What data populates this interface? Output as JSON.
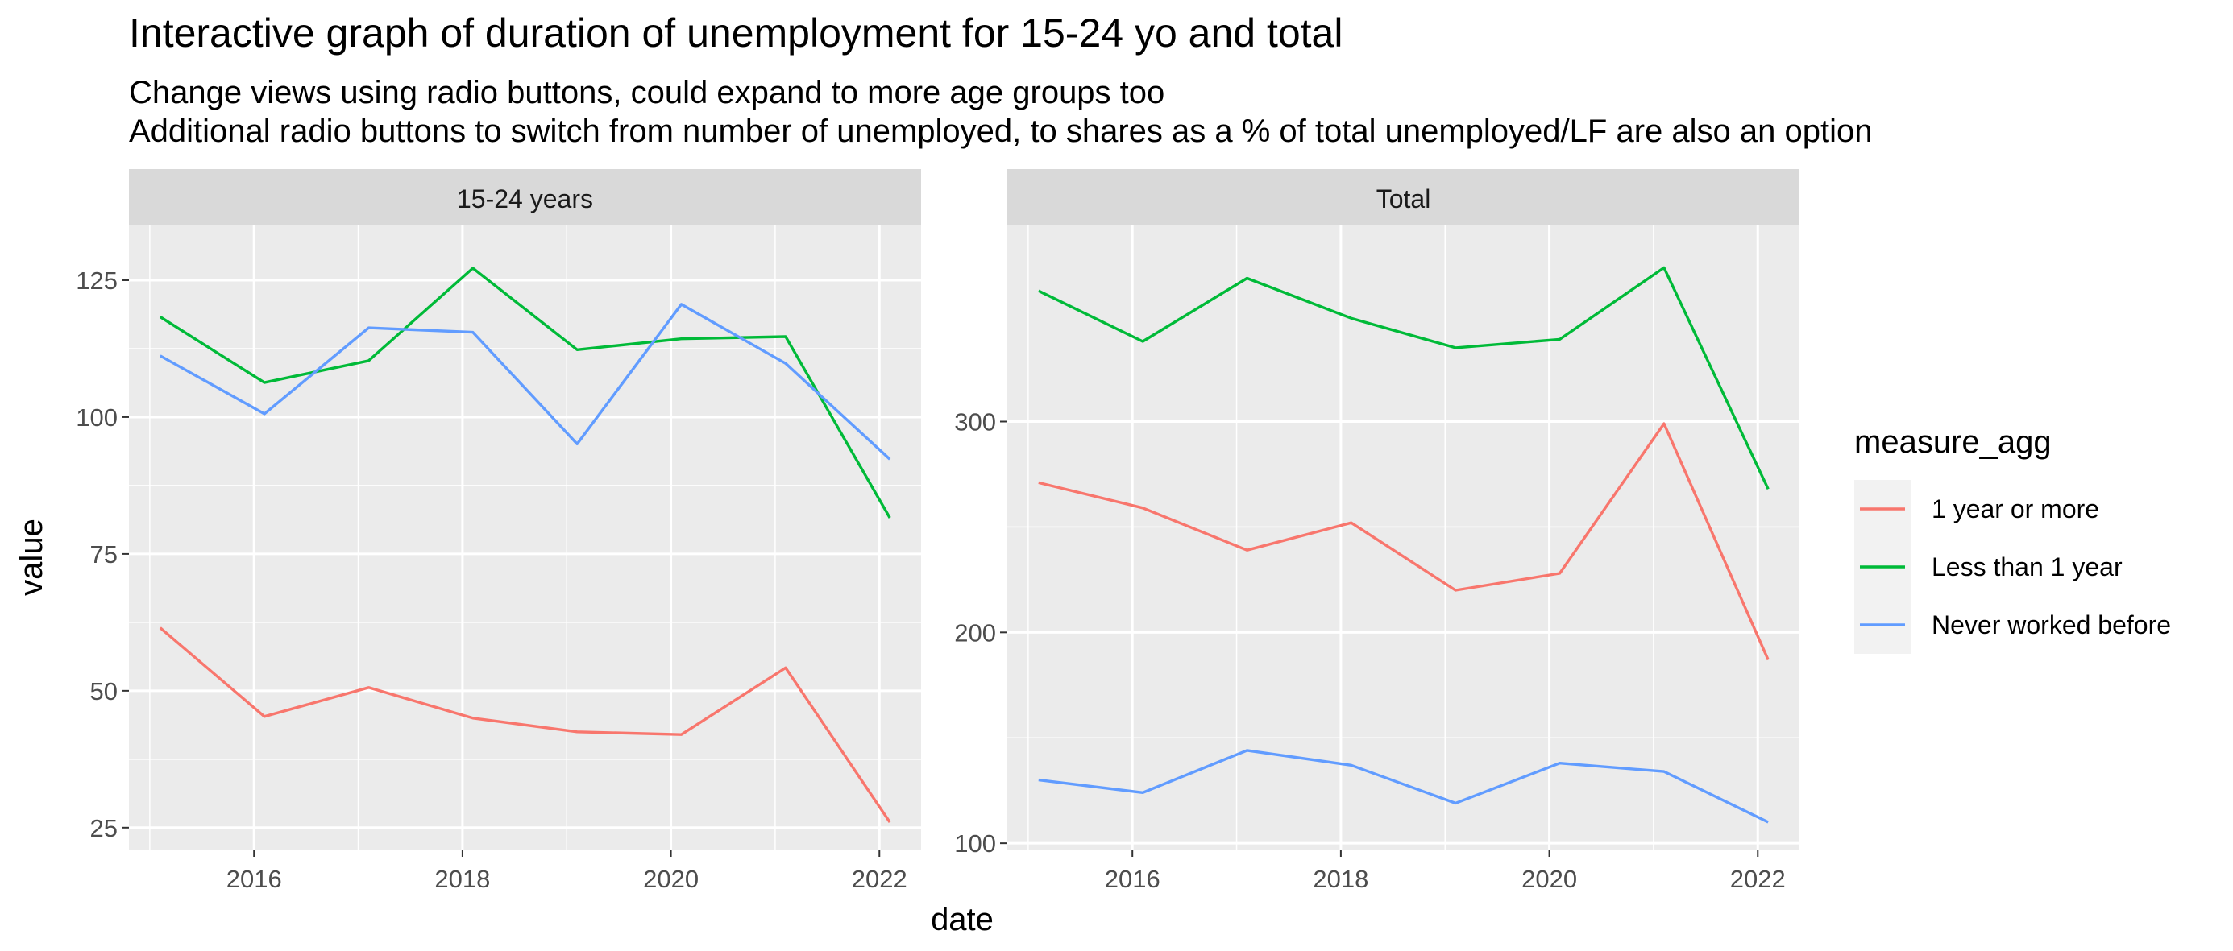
{
  "chart_data": {
    "type": "line",
    "title": "Interactive graph of duration of unemployment for 15-24 yo and total",
    "subtitle_lines": [
      "Change views using radio buttons, could expand to more age groups too",
      "Additional radio buttons to switch from number of unemployed, to shares as a % of total unemployed/LF are also an option"
    ],
    "xlabel": "date",
    "ylabel": "value",
    "legend": {
      "title": "measure_agg",
      "position": "right",
      "items": [
        {
          "name": "1 year or more",
          "color": "#F8766D"
        },
        {
          "name": "Less than 1 year",
          "color": "#00BA38"
        },
        {
          "name": "Never worked before",
          "color": "#619CFF"
        }
      ]
    },
    "x": [
      2015.1,
      2016.1,
      2017.1,
      2018.1,
      2019.1,
      2020.1,
      2021.1,
      2022.1
    ],
    "xlim": [
      2014.8,
      2022.4
    ],
    "xticks": [
      2016,
      2018,
      2020,
      2022
    ],
    "grid": true,
    "panels": [
      {
        "label": "15-24 years",
        "ylim": [
          21,
          135
        ],
        "yticks": [
          25,
          50,
          75,
          100,
          125
        ],
        "series": [
          {
            "name": "1 year or more",
            "values": [
              61.5,
              45.3,
              50.6,
              45.0,
              42.5,
              42.0,
              54.2,
              26.0
            ]
          },
          {
            "name": "Less than 1 year",
            "values": [
              118.3,
              106.3,
              110.3,
              127.2,
              112.3,
              114.3,
              114.7,
              81.6
            ]
          },
          {
            "name": "Never worked before",
            "values": [
              111.2,
              100.6,
              116.3,
              115.5,
              95.1,
              120.6,
              109.8,
              92.3
            ]
          }
        ]
      },
      {
        "label": "Total",
        "ylim": [
          97,
          393
        ],
        "yticks": [
          100,
          200,
          300
        ],
        "series": [
          {
            "name": "1 year or more",
            "values": [
              271,
              259,
              239,
              252,
              220,
              228,
              299,
              187
            ]
          },
          {
            "name": "Less than 1 year",
            "values": [
              362,
              338,
              368,
              349,
              335,
              339,
              373,
              268
            ]
          },
          {
            "name": "Never worked before",
            "values": [
              130,
              124,
              144,
              137,
              119,
              138,
              134,
              110
            ]
          }
        ]
      }
    ]
  }
}
